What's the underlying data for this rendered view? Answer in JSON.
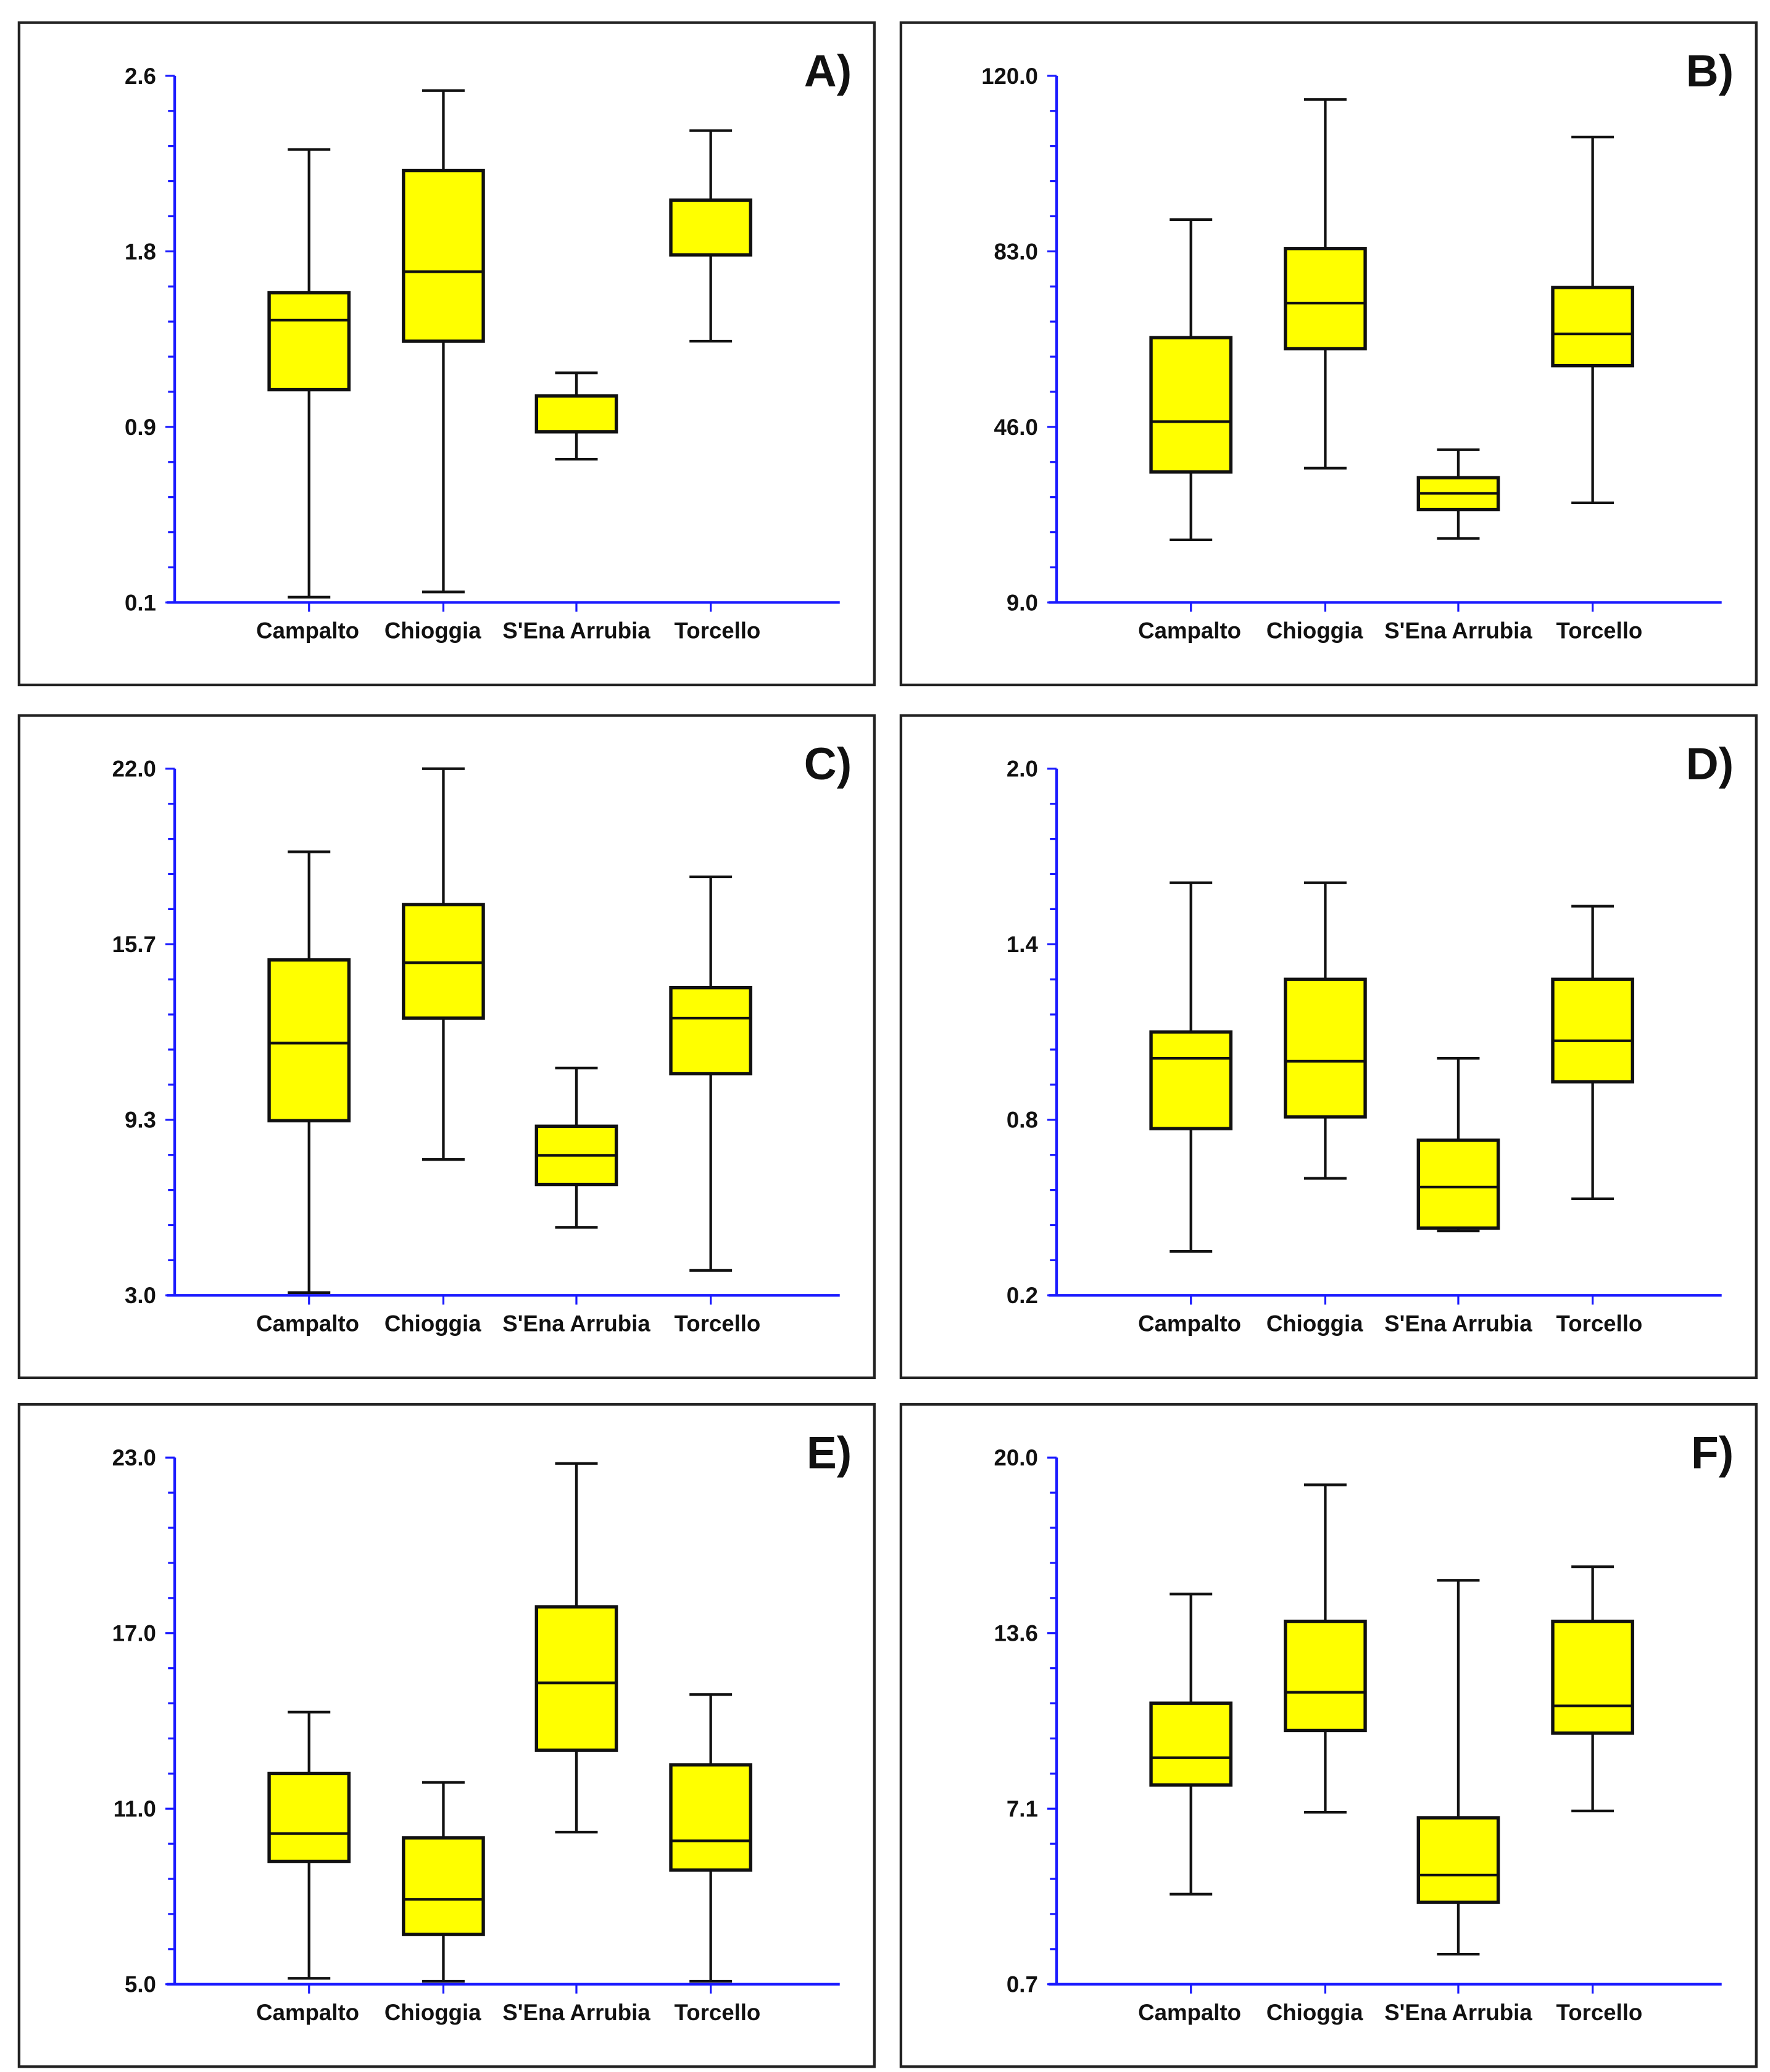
{
  "chart_data": [
    {
      "type": "box",
      "panel_label": "A)",
      "categories": [
        "Campalto",
        "Chioggia",
        "S'Ena Arrubia",
        "Torcello"
      ],
      "ylim": [
        0.1,
        2.6
      ],
      "yticks": [
        "0.1",
        "0.9",
        "1.8",
        "2.6"
      ],
      "boxes": [
        {
          "min": 0.125,
          "q1": 1.11,
          "median": 1.44,
          "q3": 1.57,
          "max": 2.25
        },
        {
          "min": 0.15,
          "q1": 1.34,
          "median": 1.67,
          "q3": 2.15,
          "max": 2.53
        },
        {
          "min": 0.78,
          "q1": 0.91,
          "median": 0.91,
          "q3": 1.08,
          "max": 1.19
        },
        {
          "min": 1.34,
          "q1": 1.75,
          "median": 1.75,
          "q3": 2.01,
          "max": 2.34
        }
      ]
    },
    {
      "type": "box",
      "panel_label": "B)",
      "categories": [
        "Campalto",
        "Chioggia",
        "S'Ena Arrubia",
        "Torcello"
      ],
      "ylim": [
        9.0,
        120.0
      ],
      "yticks": [
        "9.0",
        "46.0",
        "83.0",
        "120.0"
      ],
      "boxes": [
        {
          "min": 22.2,
          "q1": 36.5,
          "median": 47.1,
          "q3": 64.8,
          "max": 89.7
        },
        {
          "min": 37.3,
          "q1": 62.5,
          "median": 72.1,
          "q3": 83.6,
          "max": 115.0
        },
        {
          "min": 22.5,
          "q1": 28.6,
          "median": 32.0,
          "q3": 35.3,
          "max": 41.2
        },
        {
          "min": 30.0,
          "q1": 58.9,
          "median": 65.6,
          "q3": 75.4,
          "max": 107.1
        }
      ]
    },
    {
      "type": "box",
      "panel_label": "C)",
      "categories": [
        "Campalto",
        "Chioggia",
        "S'Ena Arrubia",
        "Torcello"
      ],
      "ylim": [
        3.0,
        22.0
      ],
      "yticks": [
        "3.0",
        "9.3",
        "15.7",
        "22.0"
      ],
      "boxes": [
        {
          "min": 3.1,
          "q1": 9.3,
          "median": 12.1,
          "q3": 15.1,
          "max": 19.0
        },
        {
          "min": 7.9,
          "q1": 13.0,
          "median": 15.0,
          "q3": 17.1,
          "max": 22.0
        },
        {
          "min": 5.45,
          "q1": 7.0,
          "median": 8.05,
          "q3": 9.1,
          "max": 11.2
        },
        {
          "min": 3.9,
          "q1": 11.0,
          "median": 13.0,
          "q3": 14.1,
          "max": 18.1
        }
      ]
    },
    {
      "type": "box",
      "panel_label": "D)",
      "categories": [
        "Campalto",
        "Chioggia",
        "S'Ena Arrubia",
        "Torcello"
      ],
      "ylim": [
        0.2,
        2.0
      ],
      "yticks": [
        "0.2",
        "0.8",
        "1.4",
        "2.0"
      ],
      "boxes": [
        {
          "min": 0.35,
          "q1": 0.77,
          "median": 1.01,
          "q3": 1.1,
          "max": 1.61
        },
        {
          "min": 0.6,
          "q1": 0.81,
          "median": 1.0,
          "q3": 1.28,
          "max": 1.61
        },
        {
          "min": 0.42,
          "q1": 0.43,
          "median": 0.57,
          "q3": 0.73,
          "max": 1.01
        },
        {
          "min": 0.53,
          "q1": 0.93,
          "median": 1.07,
          "q3": 1.28,
          "max": 1.53
        }
      ]
    },
    {
      "type": "box",
      "panel_label": "E)",
      "categories": [
        "Campalto",
        "Chioggia",
        "S'Ena Arrubia",
        "Torcello"
      ],
      "ylim": [
        5.0,
        23.0
      ],
      "yticks": [
        "5.0",
        "11.0",
        "17.0",
        "23.0"
      ],
      "boxes": [
        {
          "min": 5.2,
          "q1": 9.2,
          "median": 10.15,
          "q3": 12.2,
          "max": 14.3
        },
        {
          "min": 5.1,
          "q1": 6.7,
          "median": 7.9,
          "q3": 10.0,
          "max": 11.9
        },
        {
          "min": 10.2,
          "q1": 13.0,
          "median": 15.3,
          "q3": 17.9,
          "max": 22.8
        },
        {
          "min": 5.1,
          "q1": 8.9,
          "median": 9.9,
          "q3": 12.5,
          "max": 14.9
        }
      ]
    },
    {
      "type": "box",
      "panel_label": "F)",
      "categories": [
        "Campalto",
        "Chioggia",
        "S'Ena Arrubia",
        "Torcello"
      ],
      "ylim": [
        0.7,
        20.0
      ],
      "yticks": [
        "0.7",
        "7.1",
        "13.6",
        "20.0"
      ],
      "boxes": [
        {
          "min": 4.0,
          "q1": 8.0,
          "median": 9.0,
          "q3": 11.0,
          "max": 15.0
        },
        {
          "min": 7.0,
          "q1": 10.0,
          "median": 11.4,
          "q3": 14.0,
          "max": 19.0
        },
        {
          "min": 1.8,
          "q1": 3.7,
          "median": 4.7,
          "q3": 6.8,
          "max": 15.5
        },
        {
          "min": 7.05,
          "q1": 9.9,
          "median": 10.9,
          "q3": 14.0,
          "max": 16.0
        }
      ]
    }
  ],
  "colors": {
    "box_fill": "#ffff00",
    "axis": "#1a1aff",
    "frame": "#222222"
  }
}
